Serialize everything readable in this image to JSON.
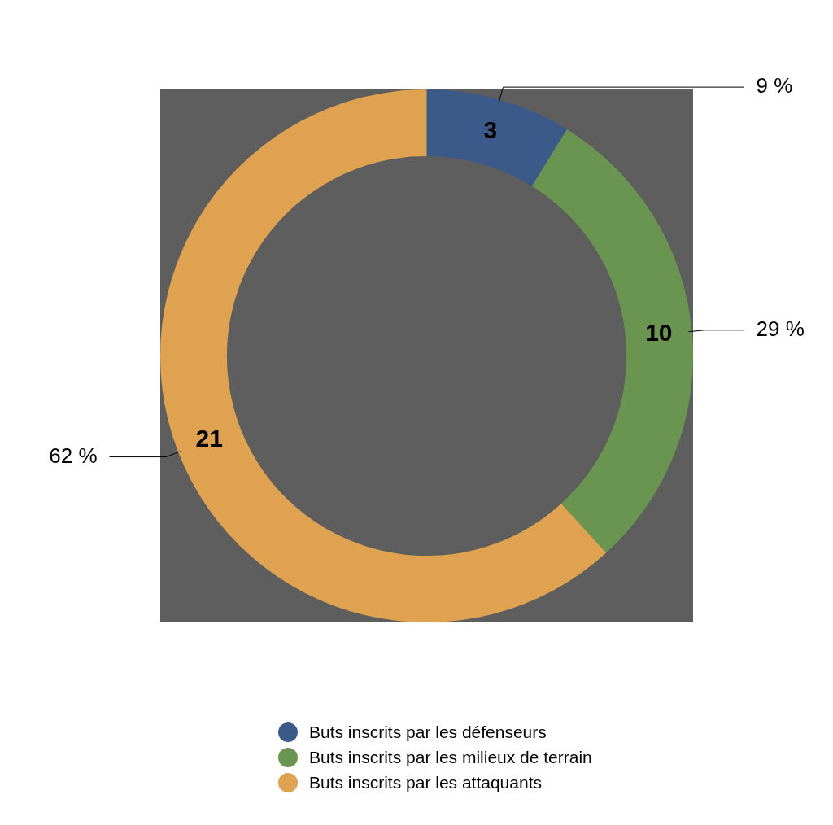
{
  "chart_data": {
    "type": "donut",
    "categories": [
      "Buts inscrits par les défenseurs",
      "Buts inscrits par les milieux de terrain",
      "Buts inscrits par les attaquants"
    ],
    "values": [
      3,
      10,
      21
    ],
    "colors": [
      "#3b5a8a",
      "#6a9550",
      "#dea250"
    ],
    "data_labels": true,
    "annotations": [
      "9 %",
      "29 %",
      "62 %"
    ],
    "legend": "bottom"
  }
}
